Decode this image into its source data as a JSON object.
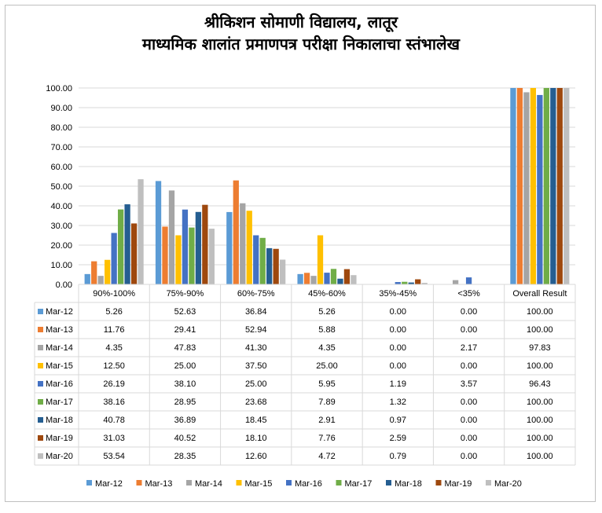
{
  "chart_data": {
    "type": "bar",
    "title": "श्रीकिशन सोमाणी विद्यालय, लातूर",
    "subtitle": "माध्यमिक शालांत प्रमाणपत्र परीक्षा निकालाचा स्तंभालेख",
    "categories": [
      "90%-100%",
      "75%-90%",
      "60%-75%",
      "45%-60%",
      "35%-45%",
      "<35%",
      "Overall Result"
    ],
    "ylim": [
      0,
      100
    ],
    "yticks": [
      "0.00",
      "10.00",
      "20.00",
      "30.00",
      "40.00",
      "50.00",
      "60.00",
      "70.00",
      "80.00",
      "90.00",
      "100.00"
    ],
    "grid": true,
    "legend_position": "bottom",
    "series": [
      {
        "name": "Mar-12",
        "color": "#5B9BD5",
        "values": [
          5.26,
          52.63,
          36.84,
          5.26,
          0.0,
          0.0,
          100.0
        ],
        "labels": [
          "5.26",
          "52.63",
          "36.84",
          "5.26",
          "0.00",
          "0.00",
          "100.00"
        ]
      },
      {
        "name": "Mar-13",
        "color": "#ED7D31",
        "values": [
          11.76,
          29.41,
          52.94,
          5.88,
          0.0,
          0.0,
          100.0
        ],
        "labels": [
          "11.76",
          "29.41",
          "52.94",
          "5.88",
          "0.00",
          "0.00",
          "100.00"
        ]
      },
      {
        "name": "Mar-14",
        "color": "#A5A5A5",
        "values": [
          4.35,
          47.83,
          41.3,
          4.35,
          0.0,
          2.17,
          97.83
        ],
        "labels": [
          "4.35",
          "47.83",
          "41.30",
          "4.35",
          "0.00",
          "2.17",
          "97.83"
        ]
      },
      {
        "name": "Mar-15",
        "color": "#FFC000",
        "values": [
          12.5,
          25.0,
          37.5,
          25.0,
          0.0,
          0.0,
          100.0
        ],
        "labels": [
          "12.50",
          "25.00",
          "37.50",
          "25.00",
          "0.00",
          "0.00",
          "100.00"
        ]
      },
      {
        "name": "Mar-16",
        "color": "#4472C4",
        "values": [
          26.19,
          38.1,
          25.0,
          5.95,
          1.19,
          3.57,
          96.43
        ],
        "labels": [
          "26.19",
          "38.10",
          "25.00",
          "5.95",
          "1.19",
          "3.57",
          "96.43"
        ]
      },
      {
        "name": "Mar-17",
        "color": "#70AD47",
        "values": [
          38.16,
          28.95,
          23.68,
          7.89,
          1.32,
          0.0,
          100.0
        ],
        "labels": [
          "38.16",
          "28.95",
          "23.68",
          "7.89",
          "1.32",
          "0.00",
          "100.00"
        ]
      },
      {
        "name": "Mar-18",
        "color": "#255E91",
        "values": [
          40.78,
          36.89,
          18.45,
          2.91,
          0.97,
          0.0,
          100.0
        ],
        "labels": [
          "40.78",
          "36.89",
          "18.45",
          "2.91",
          "0.97",
          "0.00",
          "100.00"
        ]
      },
      {
        "name": "Mar-19",
        "color": "#9E480E",
        "values": [
          31.03,
          40.52,
          18.1,
          7.76,
          2.59,
          0.0,
          100.0
        ],
        "labels": [
          "31.03",
          "40.52",
          "18.10",
          "7.76",
          "2.59",
          "0.00",
          "100.00"
        ]
      },
      {
        "name": "Mar-20",
        "color": "#BFBFBF",
        "values": [
          53.54,
          28.35,
          12.6,
          4.72,
          0.79,
          0.0,
          100.0
        ],
        "labels": [
          "53.54",
          "28.35",
          "12.60",
          "4.72",
          "0.79",
          "0.00",
          "100.00"
        ]
      }
    ]
  }
}
